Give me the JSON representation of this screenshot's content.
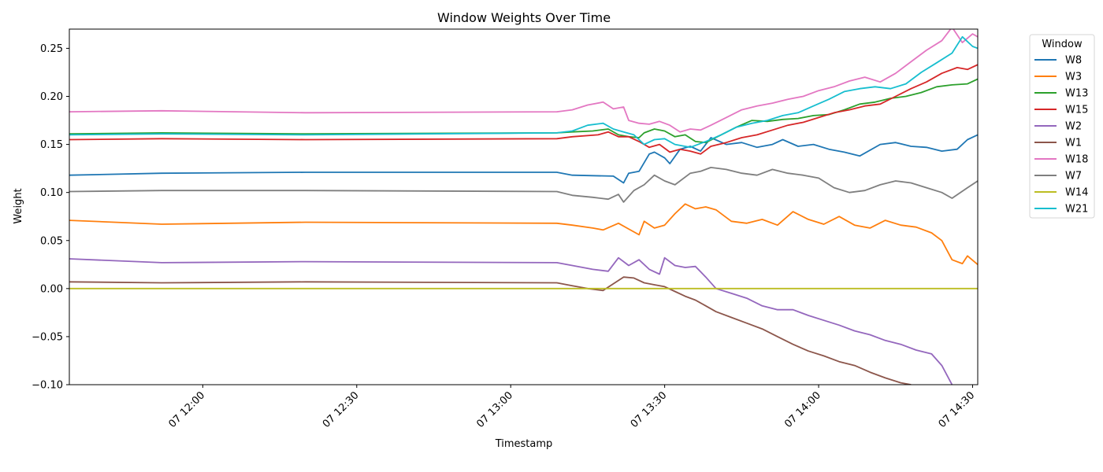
{
  "chart_data": {
    "type": "line",
    "title": "Window Weights Over Time",
    "xlabel": "Timestamp",
    "ylabel": "Weight",
    "xlim": [
      "07 11:34",
      "07 14:31"
    ],
    "ylim": [
      -0.1,
      0.27
    ],
    "x_ticks": [
      "07 12:00",
      "07 12:30",
      "07 13:00",
      "07 13:30",
      "07 14:00",
      "07 14:30"
    ],
    "y_ticks": [
      "−0.10",
      "−0.05",
      "0.00",
      "0.05",
      "0.10",
      "0.15",
      "0.20",
      "0.25"
    ],
    "legend": {
      "title": "Window",
      "placement": "outside-right"
    },
    "grid": false,
    "series": [
      {
        "name": "W8",
        "color": "#1f77b4",
        "x": [
          "07 11:34",
          "07 11:52",
          "07 12:20",
          "07 13:09",
          "07 13:12",
          "07 13:20",
          "07 13:22",
          "07 13:23",
          "07 13:25",
          "07 13:27",
          "07 13:28",
          "07 13:30",
          "07 13:31",
          "07 13:33",
          "07 13:35",
          "07 13:37",
          "07 13:39",
          "07 13:42",
          "07 13:45",
          "07 13:48",
          "07 13:51",
          "07 13:53",
          "07 13:56",
          "07 13:59",
          "07 14:02",
          "07 14:05",
          "07 14:08",
          "07 14:12",
          "07 14:15",
          "07 14:18",
          "07 14:21",
          "07 14:24",
          "07 14:27",
          "07 14:29",
          "07 14:31"
        ],
        "y": [
          0.118,
          0.12,
          0.121,
          0.121,
          0.118,
          0.117,
          0.11,
          0.12,
          0.122,
          0.14,
          0.142,
          0.136,
          0.13,
          0.145,
          0.148,
          0.143,
          0.157,
          0.15,
          0.152,
          0.147,
          0.15,
          0.155,
          0.148,
          0.15,
          0.145,
          0.142,
          0.138,
          0.15,
          0.152,
          0.148,
          0.147,
          0.143,
          0.145,
          0.155,
          0.16
        ]
      },
      {
        "name": "W3",
        "color": "#ff7f0e",
        "x": [
          "07 11:34",
          "07 11:52",
          "07 12:20",
          "07 13:09",
          "07 13:12",
          "07 13:16",
          "07 13:18",
          "07 13:21",
          "07 13:23",
          "07 13:25",
          "07 13:26",
          "07 13:28",
          "07 13:30",
          "07 13:32",
          "07 13:34",
          "07 13:36",
          "07 13:38",
          "07 13:40",
          "07 13:43",
          "07 13:46",
          "07 13:49",
          "07 13:52",
          "07 13:55",
          "07 13:58",
          "07 14:01",
          "07 14:04",
          "07 14:07",
          "07 14:10",
          "07 14:13",
          "07 14:16",
          "07 14:19",
          "07 14:22",
          "07 14:24",
          "07 14:26",
          "07 14:28",
          "07 14:29",
          "07 14:31"
        ],
        "y": [
          0.071,
          0.067,
          0.069,
          0.068,
          0.066,
          0.063,
          0.061,
          0.068,
          0.062,
          0.056,
          0.07,
          0.063,
          0.066,
          0.078,
          0.088,
          0.083,
          0.085,
          0.082,
          0.07,
          0.068,
          0.072,
          0.066,
          0.08,
          0.072,
          0.067,
          0.075,
          0.066,
          0.063,
          0.071,
          0.066,
          0.064,
          0.058,
          0.05,
          0.03,
          0.026,
          0.034,
          0.025
        ]
      },
      {
        "name": "W13",
        "color": "#2ca02c",
        "x": [
          "07 11:34",
          "07 11:52",
          "07 12:20",
          "07 13:09",
          "07 13:12",
          "07 13:16",
          "07 13:19",
          "07 13:21",
          "07 13:23",
          "07 13:25",
          "07 13:26",
          "07 13:28",
          "07 13:30",
          "07 13:32",
          "07 13:34",
          "07 13:36",
          "07 13:38",
          "07 13:41",
          "07 13:44",
          "07 13:47",
          "07 13:50",
          "07 13:53",
          "07 13:56",
          "07 13:59",
          "07 14:02",
          "07 14:05",
          "07 14:08",
          "07 14:11",
          "07 14:14",
          "07 14:17",
          "07 14:20",
          "07 14:23",
          "07 14:26",
          "07 14:29",
          "07 14:31"
        ],
        "y": [
          0.161,
          0.162,
          0.161,
          0.162,
          0.163,
          0.164,
          0.166,
          0.16,
          0.158,
          0.157,
          0.162,
          0.166,
          0.164,
          0.158,
          0.16,
          0.153,
          0.152,
          0.16,
          0.168,
          0.175,
          0.174,
          0.176,
          0.177,
          0.18,
          0.181,
          0.186,
          0.192,
          0.194,
          0.198,
          0.2,
          0.204,
          0.21,
          0.212,
          0.213,
          0.218
        ]
      },
      {
        "name": "W15",
        "color": "#d62728",
        "x": [
          "07 11:34",
          "07 11:52",
          "07 12:20",
          "07 13:09",
          "07 13:12",
          "07 13:17",
          "07 13:19",
          "07 13:21",
          "07 13:23",
          "07 13:25",
          "07 13:27",
          "07 13:29",
          "07 13:31",
          "07 13:33",
          "07 13:35",
          "07 13:37",
          "07 13:39",
          "07 13:42",
          "07 13:45",
          "07 13:48",
          "07 13:51",
          "07 13:54",
          "07 13:57",
          "07 14:00",
          "07 14:03",
          "07 14:06",
          "07 14:09",
          "07 14:12",
          "07 14:15",
          "07 14:18",
          "07 14:21",
          "07 14:24",
          "07 14:27",
          "07 14:29",
          "07 14:31"
        ],
        "y": [
          0.155,
          0.156,
          0.155,
          0.156,
          0.158,
          0.16,
          0.163,
          0.158,
          0.158,
          0.153,
          0.147,
          0.15,
          0.142,
          0.145,
          0.143,
          0.14,
          0.148,
          0.152,
          0.157,
          0.16,
          0.165,
          0.17,
          0.173,
          0.178,
          0.183,
          0.186,
          0.19,
          0.192,
          0.2,
          0.208,
          0.215,
          0.224,
          0.23,
          0.228,
          0.233
        ]
      },
      {
        "name": "W2",
        "color": "#9467bd",
        "x": [
          "07 11:34",
          "07 11:52",
          "07 12:20",
          "07 13:09",
          "07 13:12",
          "07 13:16",
          "07 13:19",
          "07 13:21",
          "07 13:23",
          "07 13:25",
          "07 13:27",
          "07 13:29",
          "07 13:30",
          "07 13:32",
          "07 13:34",
          "07 13:36",
          "07 13:38",
          "07 13:40",
          "07 13:43",
          "07 13:46",
          "07 13:49",
          "07 13:52",
          "07 13:55",
          "07 13:58",
          "07 14:01",
          "07 14:04",
          "07 14:07",
          "07 14:10",
          "07 14:13",
          "07 14:16",
          "07 14:19",
          "07 14:22",
          "07 14:24",
          "07 14:26"
        ],
        "y": [
          0.031,
          0.027,
          0.028,
          0.027,
          0.024,
          0.02,
          0.018,
          0.032,
          0.024,
          0.03,
          0.02,
          0.015,
          0.032,
          0.024,
          0.022,
          0.023,
          0.012,
          0.0,
          -0.005,
          -0.01,
          -0.018,
          -0.022,
          -0.022,
          -0.028,
          -0.033,
          -0.038,
          -0.044,
          -0.048,
          -0.054,
          -0.058,
          -0.064,
          -0.068,
          -0.08,
          -0.1
        ]
      },
      {
        "name": "W1",
        "color": "#8c564b",
        "x": [
          "07 11:34",
          "07 11:52",
          "07 12:20",
          "07 13:09",
          "07 13:12",
          "07 13:15",
          "07 13:18",
          "07 13:20",
          "07 13:22",
          "07 13:24",
          "07 13:26",
          "07 13:28",
          "07 13:30",
          "07 13:32",
          "07 13:34",
          "07 13:36",
          "07 13:38",
          "07 13:40",
          "07 13:43",
          "07 13:46",
          "07 13:49",
          "07 13:52",
          "07 13:55",
          "07 13:58",
          "07 14:01",
          "07 14:04",
          "07 14:07",
          "07 14:10",
          "07 14:13",
          "07 14:16",
          "07 14:18"
        ],
        "y": [
          0.007,
          0.006,
          0.007,
          0.006,
          0.003,
          0.0,
          -0.002,
          0.005,
          0.012,
          0.011,
          0.006,
          0.004,
          0.002,
          -0.003,
          -0.008,
          -0.012,
          -0.018,
          -0.024,
          -0.03,
          -0.036,
          -0.042,
          -0.05,
          -0.058,
          -0.065,
          -0.07,
          -0.076,
          -0.08,
          -0.087,
          -0.093,
          -0.098,
          -0.1
        ]
      },
      {
        "name": "W18",
        "color": "#e377c2",
        "x": [
          "07 11:34",
          "07 11:52",
          "07 12:20",
          "07 13:09",
          "07 13:12",
          "07 13:15",
          "07 13:18",
          "07 13:20",
          "07 13:22",
          "07 13:23",
          "07 13:25",
          "07 13:27",
          "07 13:29",
          "07 13:31",
          "07 13:33",
          "07 13:35",
          "07 13:37",
          "07 13:39",
          "07 13:42",
          "07 13:45",
          "07 13:48",
          "07 13:51",
          "07 13:54",
          "07 13:57",
          "07 14:00",
          "07 14:03",
          "07 14:06",
          "07 14:09",
          "07 14:12",
          "07 14:15",
          "07 14:18",
          "07 14:21",
          "07 14:24",
          "07 14:26",
          "07 14:28",
          "07 14:30",
          "07 14:31"
        ],
        "y": [
          0.184,
          0.185,
          0.183,
          0.184,
          0.186,
          0.191,
          0.194,
          0.187,
          0.189,
          0.175,
          0.172,
          0.171,
          0.174,
          0.17,
          0.163,
          0.166,
          0.165,
          0.17,
          0.178,
          0.186,
          0.19,
          0.193,
          0.197,
          0.2,
          0.206,
          0.21,
          0.216,
          0.22,
          0.215,
          0.224,
          0.236,
          0.248,
          0.258,
          0.272,
          0.256,
          0.265,
          0.262
        ]
      },
      {
        "name": "W7",
        "color": "#7f7f7f",
        "x": [
          "07 11:34",
          "07 11:52",
          "07 12:20",
          "07 13:09",
          "07 13:12",
          "07 13:16",
          "07 13:19",
          "07 13:21",
          "07 13:22",
          "07 13:24",
          "07 13:26",
          "07 13:28",
          "07 13:30",
          "07 13:32",
          "07 13:35",
          "07 13:37",
          "07 13:39",
          "07 13:42",
          "07 13:45",
          "07 13:48",
          "07 13:51",
          "07 13:54",
          "07 13:57",
          "07 14:00",
          "07 14:03",
          "07 14:06",
          "07 14:09",
          "07 14:12",
          "07 14:15",
          "07 14:18",
          "07 14:21",
          "07 14:24",
          "07 14:26",
          "07 14:29",
          "07 14:31"
        ],
        "y": [
          0.101,
          0.102,
          0.102,
          0.101,
          0.097,
          0.095,
          0.093,
          0.098,
          0.09,
          0.102,
          0.108,
          0.118,
          0.112,
          0.108,
          0.12,
          0.122,
          0.126,
          0.124,
          0.12,
          0.118,
          0.124,
          0.12,
          0.118,
          0.115,
          0.105,
          0.1,
          0.102,
          0.108,
          0.112,
          0.11,
          0.105,
          0.1,
          0.094,
          0.105,
          0.112
        ]
      },
      {
        "name": "W14",
        "color": "#bcbd22",
        "x": [
          "07 11:34",
          "07 14:31"
        ],
        "y": [
          0.0,
          0.0
        ]
      },
      {
        "name": "W21",
        "color": "#17becf",
        "x": [
          "07 11:34",
          "07 11:52",
          "07 12:20",
          "07 13:09",
          "07 13:12",
          "07 13:15",
          "07 13:18",
          "07 13:20",
          "07 13:22",
          "07 13:24",
          "07 13:26",
          "07 13:28",
          "07 13:30",
          "07 13:32",
          "07 13:35",
          "07 13:38",
          "07 13:41",
          "07 13:44",
          "07 13:47",
          "07 13:50",
          "07 13:53",
          "07 13:56",
          "07 13:59",
          "07 14:02",
          "07 14:05",
          "07 14:08",
          "07 14:11",
          "07 14:14",
          "07 14:17",
          "07 14:20",
          "07 14:23",
          "07 14:26",
          "07 14:28",
          "07 14:30",
          "07 14:31"
        ],
        "y": [
          0.16,
          0.161,
          0.16,
          0.162,
          0.164,
          0.17,
          0.172,
          0.166,
          0.163,
          0.16,
          0.15,
          0.155,
          0.156,
          0.15,
          0.147,
          0.153,
          0.16,
          0.168,
          0.172,
          0.175,
          0.18,
          0.183,
          0.19,
          0.197,
          0.205,
          0.208,
          0.21,
          0.208,
          0.213,
          0.225,
          0.235,
          0.245,
          0.262,
          0.252,
          0.25
        ]
      }
    ]
  }
}
